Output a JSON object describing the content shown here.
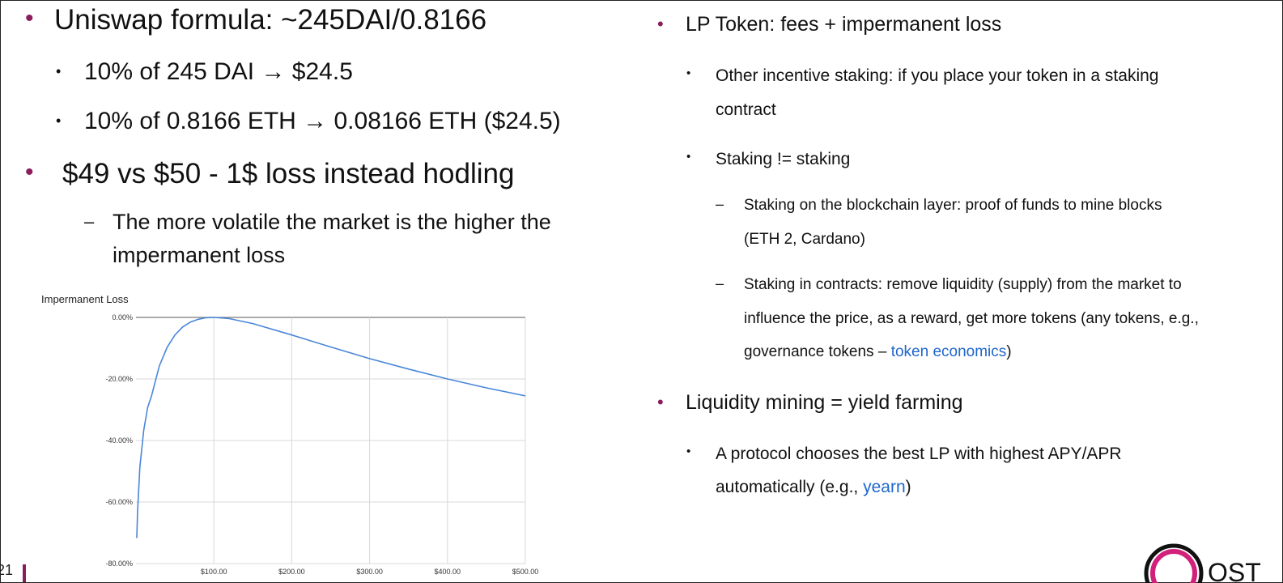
{
  "left": {
    "b1": "Uniswap formula: ~245DAI/0.8166",
    "b1a": "10% of 245 DAI → $24.5",
    "b1b": "10% of 0.8166 ETH → 0.08166 ETH ($24.5)",
    "b2": "$49 vs $50 - 1$ loss instead hodling",
    "b2a_line1": "The more volatile the market is the higher the",
    "b2a_line2": "impermanent loss"
  },
  "right": {
    "r1": "LP Token: fees + impermanent loss",
    "r1a_line1": "Other incentive staking: if you place your token in a staking",
    "r1a_line2": "contract",
    "r1b": "Staking != staking",
    "r1b1_line1": "Staking on the blockchain layer: proof of funds to mine blocks",
    "r1b1_line2": "(ETH 2, Cardano)",
    "r1b2_line1": "Staking in contracts: remove liquidity (supply) from the market to",
    "r1b2_line2": "influence the price, as a reward, get more tokens (any tokens, e.g.,",
    "r1b2_line3_pre": "governance tokens – ",
    "r1b2_link": "token economics",
    "r1b2_post": ")",
    "r2": "Liquidity mining = yield farming",
    "r2a_line1": "A protocol chooses the best LP with highest APY/APR",
    "r2a_line2_pre": "automatically (e.g., ",
    "r2a_link": "yearn",
    "r2a_post": ")"
  },
  "footer": {
    "page_number": "21",
    "logo_text": "OST"
  },
  "bullets": {
    "dot": "•",
    "dash": "–"
  },
  "colors": {
    "accent": "#8b1d5e",
    "link": "#1f66cc",
    "line": "#4a86d8"
  },
  "chart_data": {
    "type": "line",
    "title": "Impermanent Loss",
    "xlim": [
      0,
      500
    ],
    "ylim": [
      -80,
      0
    ],
    "x_ticks": [
      100,
      200,
      300,
      400,
      500
    ],
    "x_tick_labels": [
      "$100.00",
      "$200.00",
      "$300.00",
      "$400.00",
      "$500.00"
    ],
    "y_ticks": [
      0,
      -20,
      -40,
      -60,
      -80
    ],
    "y_tick_labels": [
      "0.00%",
      "-20.00%",
      "-40.00%",
      "-60.00%",
      "-80.00%"
    ],
    "grid": true,
    "series": [
      {
        "x": [
          1,
          2,
          5,
          10,
          15,
          20,
          30,
          40,
          50,
          60,
          70,
          80,
          90,
          100,
          120,
          150,
          200,
          250,
          300,
          350,
          400,
          450,
          500
        ],
        "y": [
          -71.7,
          -63.4,
          -48.6,
          -36.6,
          -29.3,
          -25.5,
          -15.7,
          -9.7,
          -5.7,
          -3.1,
          -1.5,
          -0.6,
          -0.1,
          0,
          -0.4,
          -2.0,
          -5.7,
          -9.6,
          -13.4,
          -16.8,
          -20.0,
          -22.9,
          -25.5
        ]
      }
    ]
  }
}
